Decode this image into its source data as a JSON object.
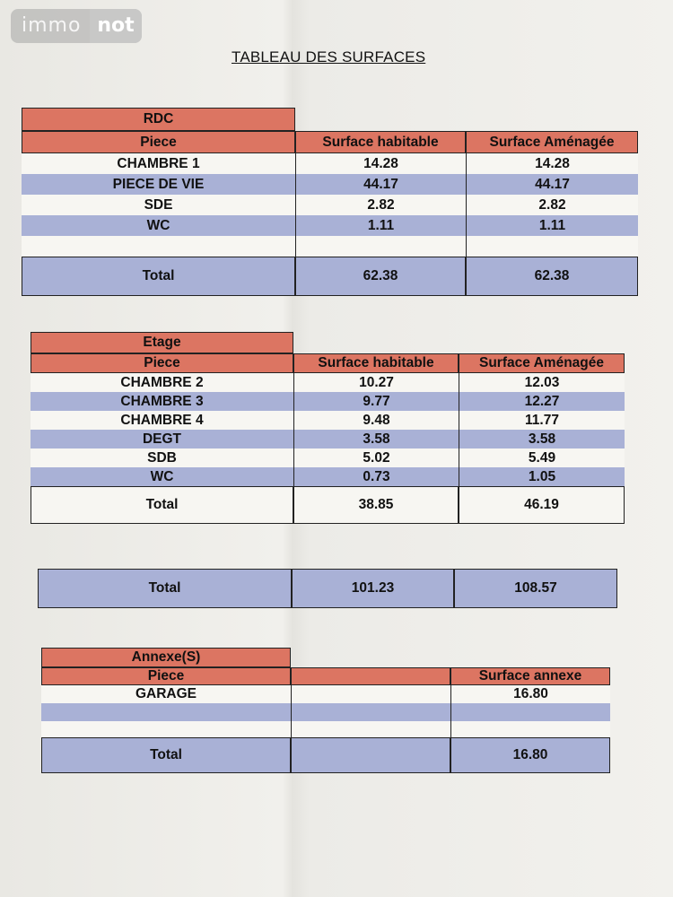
{
  "logo": {
    "left": "immo",
    "right": "not"
  },
  "title": "TABLEAU DES SURFACES",
  "rdc": {
    "section": "RDC",
    "headers": [
      "Piece",
      "Surface habitable",
      "Surface Aménagée"
    ],
    "rows": [
      [
        "CHAMBRE 1",
        "14.28",
        "14.28"
      ],
      [
        "PIECE DE VIE",
        "44.17",
        "44.17"
      ],
      [
        "SDE",
        "2.82",
        "2.82"
      ],
      [
        "WC",
        "1.11",
        "1.11"
      ],
      [
        "",
        "",
        ""
      ]
    ],
    "total": [
      "Total",
      "62.38",
      "62.38"
    ]
  },
  "etage": {
    "section": "Etage",
    "headers": [
      "Piece",
      "Surface habitable",
      "Surface Aménagée"
    ],
    "rows": [
      [
        "CHAMBRE 2",
        "10.27",
        "12.03"
      ],
      [
        "CHAMBRE 3",
        "9.77",
        "12.27"
      ],
      [
        "CHAMBRE 4",
        "9.48",
        "11.77"
      ],
      [
        "DEGT",
        "3.58",
        "3.58"
      ],
      [
        "SDB",
        "5.02",
        "5.49"
      ],
      [
        "WC",
        "0.73",
        "1.05"
      ]
    ],
    "total": [
      "Total",
      "38.85",
      "46.19"
    ]
  },
  "grand_total": [
    "Total",
    "101.23",
    "108.57"
  ],
  "annexe": {
    "section": "Annexe(S)",
    "headers": [
      "Piece",
      "",
      "Surface annexe"
    ],
    "rows": [
      [
        "GARAGE",
        "",
        "16.80"
      ],
      [
        "",
        "",
        ""
      ],
      [
        "",
        "",
        ""
      ]
    ],
    "total": [
      "Total",
      "",
      "16.80"
    ]
  }
}
